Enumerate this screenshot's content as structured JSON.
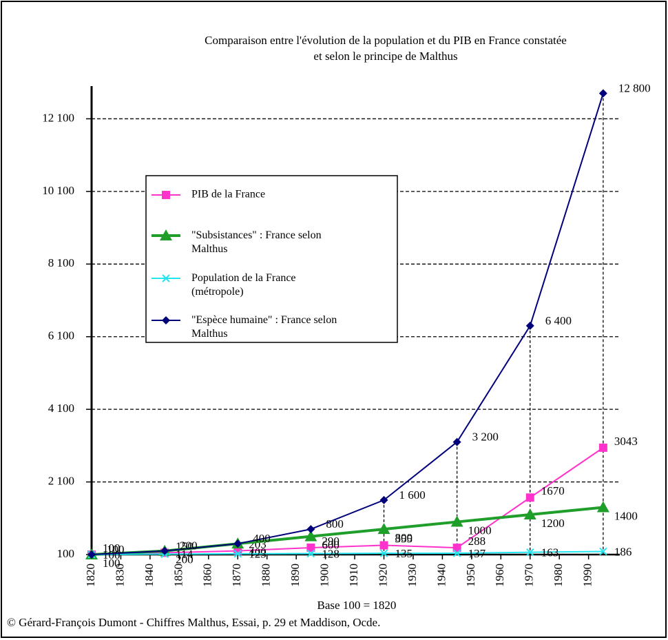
{
  "chart_data": {
    "type": "line",
    "title": "Comparaison entre l'évolution de la population et du PIB en France constatée",
    "subtitle": "et selon le principe de Malthus",
    "x_label": "Base 100 = 1820",
    "source": "© Gérard-François Dumont - Chiffres Malthus, Essai, p. 29 et Maddison, Ocde.",
    "x": [
      1820,
      1845,
      1870,
      1895,
      1920,
      1945,
      1970,
      1995
    ],
    "xlim": [
      1820,
      2000
    ],
    "xticks": [
      1820,
      1830,
      1840,
      1850,
      1860,
      1870,
      1880,
      1890,
      1900,
      1910,
      1920,
      1930,
      1940,
      1950,
      1960,
      1970,
      1980,
      1990
    ],
    "ylim": [
      100,
      13000
    ],
    "yticks": [
      {
        "value": 100,
        "label": "100"
      },
      {
        "value": 2100,
        "label": "2 100"
      },
      {
        "value": 4100,
        "label": "4 100"
      },
      {
        "value": 6100,
        "label": "6 100"
      },
      {
        "value": 8100,
        "label": "8 100"
      },
      {
        "value": 10100,
        "label": "10 100"
      },
      {
        "value": 12100,
        "label": "12 100"
      }
    ],
    "grid": true,
    "legend": "upper left",
    "series": [
      {
        "name": "PIB de la France",
        "color": "#ff33cc",
        "marker": "square",
        "values": [
          100,
          150,
          203,
          290,
          355,
          288,
          1670,
          3043
        ]
      },
      {
        "name": "\"Subsistances\" : France selon Malthus",
        "color": "#1f9e2a",
        "marker": "triangle",
        "values": [
          100,
          200,
          400,
          600,
          800,
          1000,
          1200,
          1400
        ]
      },
      {
        "name": "Population de la France (métropole)",
        "color": "#22e5f0",
        "marker": "x",
        "values": [
          100,
          114,
          123,
          128,
          135,
          137,
          163,
          186
        ]
      },
      {
        "name": "\"Espèce humaine\" : France selon Malthus",
        "color": "#00007a",
        "marker": "diamond",
        "values": [
          100,
          200,
          400,
          800,
          1600,
          3200,
          6400,
          12800
        ],
        "value_labels": [
          "100",
          "200",
          "400",
          "800",
          "1 600",
          "3 200",
          "6 400",
          "12 800"
        ]
      }
    ]
  }
}
